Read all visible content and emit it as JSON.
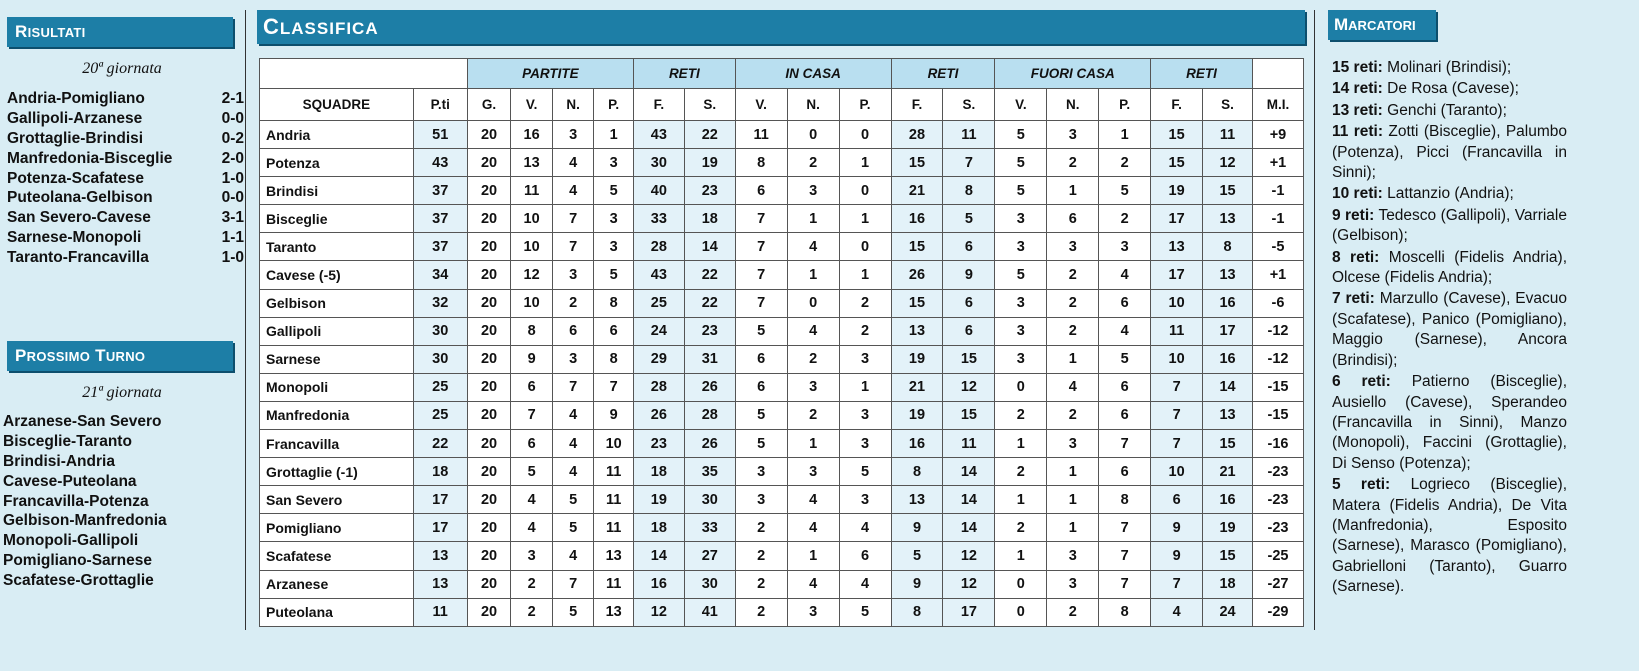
{
  "risultati": {
    "title_first": "R",
    "title_rest": "ISULTATI",
    "giornata": "20ª giornata",
    "matches": [
      {
        "teams": "Andria-Pomigliano",
        "score": "2-1"
      },
      {
        "teams": "Gallipoli-Arzanese",
        "score": "0-0"
      },
      {
        "teams": "Grottaglie-Brindisi",
        "score": "0-2"
      },
      {
        "teams": "Manfredonia-Bisceglie",
        "score": "2-0"
      },
      {
        "teams": "Potenza-Scafatese",
        "score": "1-0"
      },
      {
        "teams": "Puteolana-Gelbison",
        "score": "0-0"
      },
      {
        "teams": "San Severo-Cavese",
        "score": "3-1"
      },
      {
        "teams": "Sarnese-Monopoli",
        "score": "1-1"
      },
      {
        "teams": "Taranto-Francavilla",
        "score": "1-0"
      }
    ]
  },
  "prossimo": {
    "title_a1": "P",
    "title_a2": "ROSSIMO",
    "title_b1": "T",
    "title_b2": "URNO",
    "giornata": "21ª giornata",
    "matches": [
      "Arzanese-San Severo",
      "Bisceglie-Taranto",
      "Brindisi-Andria",
      "Cavese-Puteolana",
      "Francavilla-Potenza",
      "Gelbison-Manfredonia",
      "Monopoli-Gallipoli",
      "Pomigliano-Sarnese",
      "Scafatese-Grottaglie"
    ]
  },
  "classifica": {
    "title_first": "C",
    "title_rest": "LASSIFICA",
    "groups": {
      "partite": "PARTITE",
      "reti1": "RETI",
      "incasa": "IN CASA",
      "reti2": "RETI",
      "fuoricasa": "FUORI CASA",
      "reti3": "RETI"
    },
    "columns": [
      "SQUADRE",
      "P.ti",
      "G.",
      "V.",
      "N.",
      "P.",
      "F.",
      "S.",
      "V.",
      "N.",
      "P.",
      "F.",
      "S.",
      "V.",
      "N.",
      "P.",
      "F.",
      "S.",
      "M.I."
    ],
    "rows": [
      [
        "Andria",
        "51",
        "20",
        "16",
        "3",
        "1",
        "43",
        "22",
        "11",
        "0",
        "0",
        "28",
        "11",
        "5",
        "3",
        "1",
        "15",
        "11",
        "+9"
      ],
      [
        "Potenza",
        "43",
        "20",
        "13",
        "4",
        "3",
        "30",
        "19",
        "8",
        "2",
        "1",
        "15",
        "7",
        "5",
        "2",
        "2",
        "15",
        "12",
        "+1"
      ],
      [
        "Brindisi",
        "37",
        "20",
        "11",
        "4",
        "5",
        "40",
        "23",
        "6",
        "3",
        "0",
        "21",
        "8",
        "5",
        "1",
        "5",
        "19",
        "15",
        "-1"
      ],
      [
        "Bisceglie",
        "37",
        "20",
        "10",
        "7",
        "3",
        "33",
        "18",
        "7",
        "1",
        "1",
        "16",
        "5",
        "3",
        "6",
        "2",
        "17",
        "13",
        "-1"
      ],
      [
        "Taranto",
        "37",
        "20",
        "10",
        "7",
        "3",
        "28",
        "14",
        "7",
        "4",
        "0",
        "15",
        "6",
        "3",
        "3",
        "3",
        "13",
        "8",
        "-5"
      ],
      [
        "Cavese (-5)",
        "34",
        "20",
        "12",
        "3",
        "5",
        "43",
        "22",
        "7",
        "1",
        "1",
        "26",
        "9",
        "5",
        "2",
        "4",
        "17",
        "13",
        "+1"
      ],
      [
        "Gelbison",
        "32",
        "20",
        "10",
        "2",
        "8",
        "25",
        "22",
        "7",
        "0",
        "2",
        "15",
        "6",
        "3",
        "2",
        "6",
        "10",
        "16",
        "-6"
      ],
      [
        "Gallipoli",
        "30",
        "20",
        "8",
        "6",
        "6",
        "24",
        "23",
        "5",
        "4",
        "2",
        "13",
        "6",
        "3",
        "2",
        "4",
        "11",
        "17",
        "-12"
      ],
      [
        "Sarnese",
        "30",
        "20",
        "9",
        "3",
        "8",
        "29",
        "31",
        "6",
        "2",
        "3",
        "19",
        "15",
        "3",
        "1",
        "5",
        "10",
        "16",
        "-12"
      ],
      [
        "Monopoli",
        "25",
        "20",
        "6",
        "7",
        "7",
        "28",
        "26",
        "6",
        "3",
        "1",
        "21",
        "12",
        "0",
        "4",
        "6",
        "7",
        "14",
        "-15"
      ],
      [
        "Manfredonia",
        "25",
        "20",
        "7",
        "4",
        "9",
        "26",
        "28",
        "5",
        "2",
        "3",
        "19",
        "15",
        "2",
        "2",
        "6",
        "7",
        "13",
        "-15"
      ],
      [
        "Francavilla",
        "22",
        "20",
        "6",
        "4",
        "10",
        "23",
        "26",
        "5",
        "1",
        "3",
        "16",
        "11",
        "1",
        "3",
        "7",
        "7",
        "15",
        "-16"
      ],
      [
        "Grottaglie (-1)",
        "18",
        "20",
        "5",
        "4",
        "11",
        "18",
        "35",
        "3",
        "3",
        "5",
        "8",
        "14",
        "2",
        "1",
        "6",
        "10",
        "21",
        "-23"
      ],
      [
        "San Severo",
        "17",
        "20",
        "4",
        "5",
        "11",
        "19",
        "30",
        "3",
        "4",
        "3",
        "13",
        "14",
        "1",
        "1",
        "8",
        "6",
        "16",
        "-23"
      ],
      [
        "Pomigliano",
        "17",
        "20",
        "4",
        "5",
        "11",
        "18",
        "33",
        "2",
        "4",
        "4",
        "9",
        "14",
        "2",
        "1",
        "7",
        "9",
        "19",
        "-23"
      ],
      [
        "Scafatese",
        "13",
        "20",
        "3",
        "4",
        "13",
        "14",
        "27",
        "2",
        "1",
        "6",
        "5",
        "12",
        "1",
        "3",
        "7",
        "9",
        "15",
        "-25"
      ],
      [
        "Arzanese",
        "13",
        "20",
        "2",
        "7",
        "11",
        "16",
        "30",
        "2",
        "4",
        "4",
        "9",
        "12",
        "0",
        "3",
        "7",
        "7",
        "18",
        "-27"
      ],
      [
        "Puteolana",
        "11",
        "20",
        "2",
        "5",
        "13",
        "12",
        "41",
        "2",
        "3",
        "5",
        "8",
        "17",
        "0",
        "2",
        "8",
        "4",
        "24",
        "-29"
      ]
    ]
  },
  "marcatori": {
    "title_first": "M",
    "title_rest": "ARCATORI",
    "groups": [
      {
        "label": "15 reti:",
        "text": "Molinari (Brindisi);"
      },
      {
        "label": "14 reti:",
        "text": "De Rosa (Cavese);"
      },
      {
        "label": "13 reti:",
        "text": "Genchi (Taranto);"
      },
      {
        "label": "11 reti:",
        "text": "Zotti (Bisceglie), Palumbo (Potenza), Picci (Francavilla in Sinni);"
      },
      {
        "label": "10 reti:",
        "text": "Lattanzio (Andria);"
      },
      {
        "label": "9 reti:",
        "text": "Tedesco (Gallipoli), Varriale (Gelbison);"
      },
      {
        "label": "8 reti:",
        "text": "Moscelli (Fidelis Andria), Olcese (Fidelis Andria);"
      },
      {
        "label": "7 reti:",
        "text": "Marzullo (Cavese), Evacuo (Scafatese), Panico (Pomigliano), Maggio (Sarnese), Ancora (Brindisi);"
      },
      {
        "label": "6 reti:",
        "text": "Patierno (Bisceglie), Ausiello (Cavese), Sperandeo (Francavilla in Sinni), Manzo (Monopoli), Faccini (Grottaglie), Di Senso (Potenza);"
      },
      {
        "label": "5 reti:",
        "text": "Logrieco (Bisceglie), Matera (Fidelis Andria), De Vita (Manfredonia), Esposito (Sarnese), Marasco (Pomigliano), Gabrielloni (Taranto), Guarro (Sarnese)."
      }
    ]
  }
}
